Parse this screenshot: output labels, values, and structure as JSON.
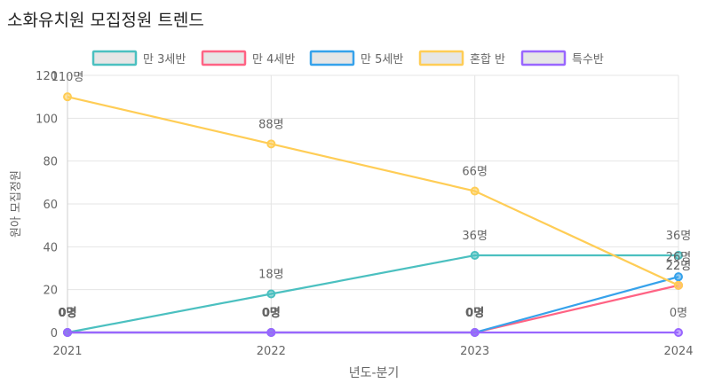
{
  "page_title": "소화유치원 모집정원 트렌드",
  "chart_data": {
    "type": "line",
    "title": "소화유치원 모집정원 트렌드",
    "xlabel": "년도-분기",
    "ylabel": "원아 모집정원",
    "categories": [
      "2021",
      "2022",
      "2023",
      "2024"
    ],
    "ylim": [
      0,
      120
    ],
    "yticks": [
      0,
      20,
      40,
      60,
      80,
      100,
      120
    ],
    "grid": true,
    "legend_position": "top",
    "value_suffix": "명",
    "series": [
      {
        "name": "만 3세반",
        "color": "#4bc0c0",
        "values": [
          0,
          18,
          36,
          36
        ]
      },
      {
        "name": "만 4세반",
        "color": "#ff6384",
        "values": [
          0,
          0,
          0,
          22
        ]
      },
      {
        "name": "만 5세반",
        "color": "#36a2eb",
        "values": [
          0,
          0,
          0,
          26
        ]
      },
      {
        "name": "혼합 반",
        "color": "#ffcd56",
        "values": [
          110,
          88,
          66,
          22
        ]
      },
      {
        "name": "특수반",
        "color": "#9966ff",
        "values": [
          0,
          0,
          0,
          0
        ]
      }
    ]
  }
}
